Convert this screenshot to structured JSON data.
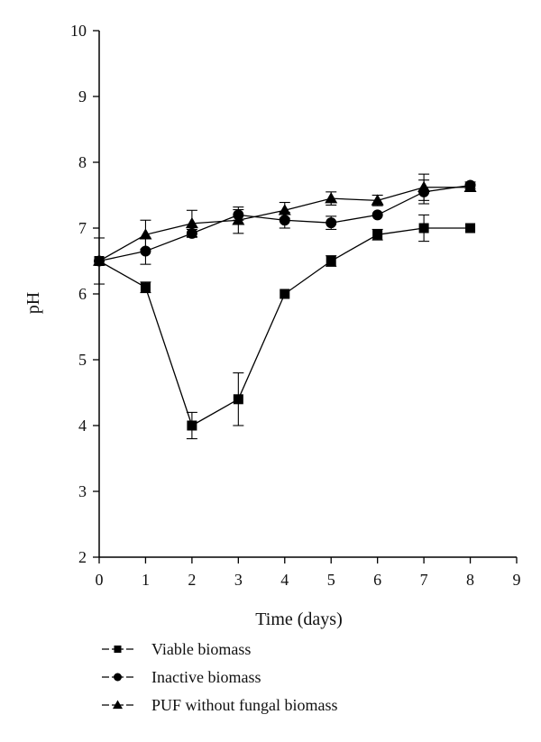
{
  "chart_data": {
    "type": "line",
    "xlabel": "Time (days)",
    "ylabel": "pH",
    "xlim": [
      0,
      9
    ],
    "ylim": [
      2,
      10
    ],
    "xticks": [
      "0",
      "1",
      "2",
      "3",
      "4",
      "5",
      "6",
      "7",
      "8",
      "9"
    ],
    "yticks": [
      "2",
      "3",
      "4",
      "5",
      "6",
      "7",
      "8",
      "9",
      "10"
    ],
    "grid": false,
    "legend_position": "bottom-left, below plot",
    "series": [
      {
        "name": "Viable biomass",
        "marker": "square",
        "legend_symbol": "–■–",
        "x": [
          0,
          1,
          2,
          3,
          4,
          5,
          6,
          7,
          8
        ],
        "y": [
          6.5,
          6.1,
          4.0,
          4.4,
          6.0,
          6.5,
          6.9,
          7.0,
          7.0
        ],
        "err": [
          0.35,
          0.08,
          0.2,
          0.4,
          0.0,
          0.08,
          0.08,
          0.2,
          0.0
        ]
      },
      {
        "name": "Inactive biomass",
        "marker": "circle",
        "legend_symbol": "–●–",
        "x": [
          0,
          1,
          2,
          3,
          4,
          5,
          6,
          7,
          8
        ],
        "y": [
          6.5,
          6.65,
          6.92,
          7.2,
          7.12,
          7.08,
          7.2,
          7.55,
          7.65
        ],
        "err": [
          0.0,
          0.2,
          0.06,
          0.08,
          0.12,
          0.1,
          0.0,
          0.18,
          0.05
        ]
      },
      {
        "name": "PUF without fungal biomass",
        "marker": "triangle",
        "legend_symbol": "–▲–",
        "x": [
          0,
          1,
          2,
          3,
          4,
          5,
          6,
          7,
          8
        ],
        "y": [
          6.5,
          6.9,
          7.07,
          7.12,
          7.27,
          7.45,
          7.42,
          7.62,
          7.62
        ],
        "err": [
          0.0,
          0.22,
          0.2,
          0.2,
          0.12,
          0.1,
          0.08,
          0.2,
          0.05
        ]
      }
    ]
  }
}
